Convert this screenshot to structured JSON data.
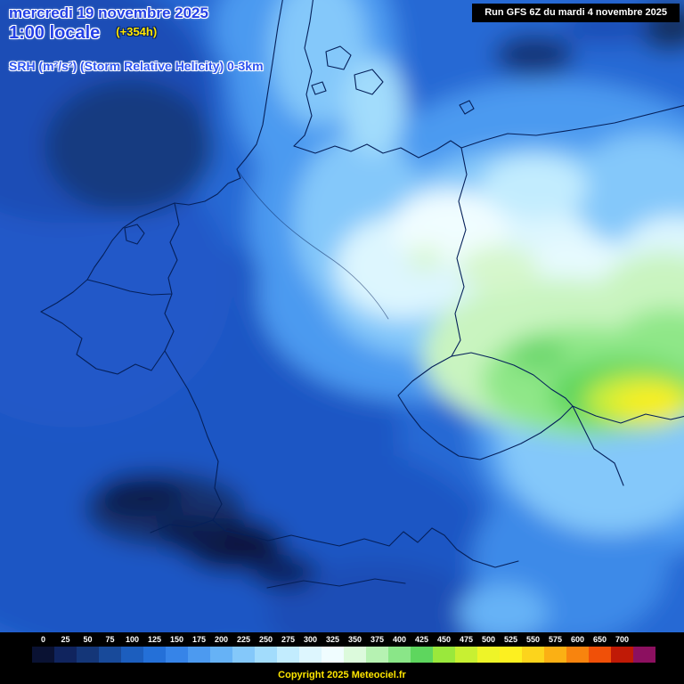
{
  "header": {
    "date": "mercredi 19 novembre 2025",
    "time": "1:00 locale",
    "forecast_offset": "(+354h)",
    "parameter": "SRH (m²/s²) (Storm Relative Helicity) 0-3km",
    "run_info": "Run GFS 6Z du mardi 4 novembre 2025"
  },
  "legend": {
    "values": [
      "0",
      "25",
      "50",
      "75",
      "100",
      "125",
      "150",
      "175",
      "200",
      "225",
      "250",
      "275",
      "300",
      "325",
      "350",
      "375",
      "400",
      "425",
      "450",
      "475",
      "500",
      "525",
      "550",
      "575",
      "600",
      "650",
      "700"
    ],
    "colors": [
      "#0a1233",
      "#10245e",
      "#143678",
      "#184a9a",
      "#1c5ebe",
      "#2470d8",
      "#3684e8",
      "#4c9af0",
      "#66b2f6",
      "#84c8fa",
      "#a2dcfc",
      "#c2ecfe",
      "#ddf6fe",
      "#f0fdff",
      "#dcfadc",
      "#b6f2b2",
      "#8ae688",
      "#5ed65e",
      "#9ae83c",
      "#c8f032",
      "#eef428",
      "#fdf020",
      "#fcd41c",
      "#fbb014",
      "#f8840e",
      "#f05008",
      "#c01a06",
      "#8c1060"
    ]
  },
  "footer": {
    "copyright": "Copyright 2025 Meteociel.fr"
  }
}
